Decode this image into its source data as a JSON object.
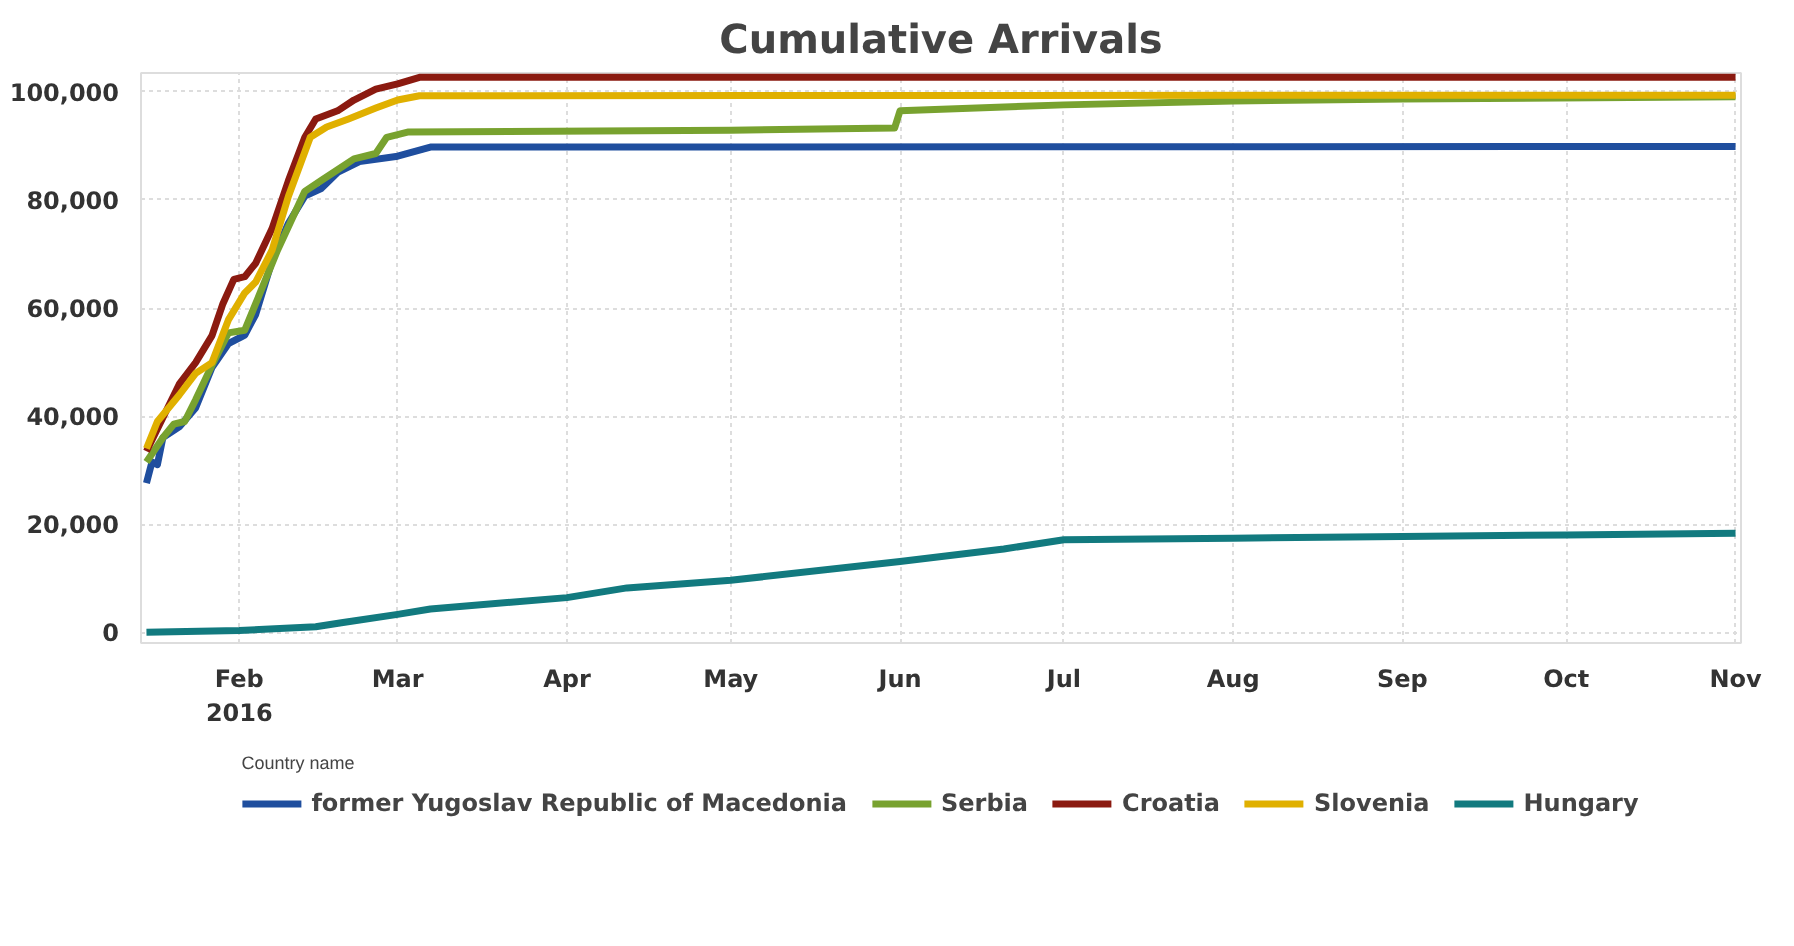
{
  "chart_data": {
    "type": "line",
    "title": "Cumulative Arrivals",
    "legend_title": "Country name",
    "legend": "bottom",
    "grid": true,
    "xlim": [
      "2016-01-14",
      "2016-11-02"
    ],
    "xticks": [
      {
        "value": "2016-02-01",
        "label": "Feb\n2016"
      },
      {
        "value": "2016-03-01",
        "label": "Mar"
      },
      {
        "value": "2016-04-01",
        "label": "Apr"
      },
      {
        "value": "2016-05-01",
        "label": "May"
      },
      {
        "value": "2016-06-01",
        "label": "Jun"
      },
      {
        "value": "2016-07-01",
        "label": "Jul"
      },
      {
        "value": "2016-08-01",
        "label": "Aug"
      },
      {
        "value": "2016-09-01",
        "label": "Sep"
      },
      {
        "value": "2016-10-01",
        "label": "Oct"
      },
      {
        "value": "2016-11-01",
        "label": "Nov"
      }
    ],
    "ylim": [
      -2000,
      103500
    ],
    "yticks": [
      {
        "value": 0,
        "label": "0"
      },
      {
        "value": 20000,
        "label": "20,000"
      },
      {
        "value": 40000,
        "label": "40,000"
      },
      {
        "value": 60000,
        "label": "60,000"
      },
      {
        "value": 80000,
        "label": "80,000"
      },
      {
        "value": 100000,
        "label": "100,000"
      }
    ],
    "series": [
      {
        "name": "former Yugoslav Republic of Macedonia",
        "color": "#1f4e9e",
        "x": [
          "2016-01-15",
          "2016-01-16",
          "2016-01-17",
          "2016-01-18",
          "2016-01-21",
          "2016-01-24",
          "2016-01-27",
          "2016-01-30",
          "2016-02-02",
          "2016-02-04",
          "2016-02-07",
          "2016-02-10",
          "2016-02-13",
          "2016-02-16",
          "2016-02-19",
          "2016-02-23",
          "2016-03-01",
          "2016-03-07",
          "2016-11-01"
        ],
        "values": [
          27600,
          31500,
          31000,
          36000,
          38000,
          41500,
          49000,
          53400,
          55000,
          58800,
          68700,
          75700,
          80700,
          82100,
          85100,
          87100,
          88100,
          89800,
          89900
        ]
      },
      {
        "name": "Serbia",
        "color": "#78a22f",
        "x": [
          "2016-01-15",
          "2016-01-18",
          "2016-01-20",
          "2016-01-22",
          "2016-01-24",
          "2016-01-27",
          "2016-01-30",
          "2016-02-02",
          "2016-02-04",
          "2016-02-08",
          "2016-02-13",
          "2016-02-16",
          "2016-02-19",
          "2016-02-22",
          "2016-02-26",
          "2016-02-28",
          "2016-03-03",
          "2016-05-01",
          "2016-05-31",
          "2016-06-01",
          "2016-07-01",
          "2016-08-01",
          "2016-09-01",
          "2016-11-01"
        ],
        "values": [
          31500,
          36000,
          38500,
          39000,
          43000,
          49400,
          55400,
          55900,
          60800,
          70700,
          81600,
          83600,
          85600,
          87600,
          88600,
          91600,
          92600,
          92900,
          93300,
          96500,
          97600,
          98300,
          98700,
          99100
        ]
      },
      {
        "name": "Croatia",
        "color": "#8b1a10",
        "x": [
          "2016-01-15",
          "2016-01-21",
          "2016-01-24",
          "2016-01-27",
          "2016-01-29",
          "2016-01-31",
          "2016-02-02",
          "2016-02-04",
          "2016-02-07",
          "2016-02-10",
          "2016-02-13",
          "2016-02-15",
          "2016-02-19",
          "2016-02-22",
          "2016-02-26",
          "2016-03-01",
          "2016-03-05",
          "2016-11-01"
        ],
        "values": [
          33500,
          45900,
          49900,
          54900,
          60800,
          65300,
          65800,
          68300,
          74700,
          83600,
          91600,
          95000,
          96500,
          98500,
          100500,
          101500,
          102700,
          102700
        ]
      },
      {
        "name": "Slovenia",
        "color": "#e0b000",
        "x": [
          "2016-01-15",
          "2016-01-17",
          "2016-01-21",
          "2016-01-24",
          "2016-01-27",
          "2016-01-30",
          "2016-02-02",
          "2016-02-04",
          "2016-02-07",
          "2016-02-10",
          "2016-02-14",
          "2016-02-17",
          "2016-02-21",
          "2016-02-26",
          "2016-03-01",
          "2016-03-05",
          "2016-11-01"
        ],
        "values": [
          34000,
          39000,
          43900,
          47900,
          49900,
          57800,
          62800,
          64800,
          70700,
          80700,
          91600,
          93500,
          95000,
          97000,
          98500,
          99300,
          99400
        ]
      },
      {
        "name": "Hungary",
        "color": "#127a7f",
        "x": [
          "2016-01-15",
          "2016-02-01",
          "2016-02-15",
          "2016-02-20",
          "2016-03-01",
          "2016-03-07",
          "2016-04-01",
          "2016-04-12",
          "2016-05-01",
          "2016-06-01",
          "2016-06-20",
          "2016-07-01",
          "2016-08-01",
          "2016-09-01",
          "2016-10-01",
          "2016-11-01"
        ],
        "values": [
          0,
          300,
          1000,
          1800,
          3300,
          4300,
          6400,
          8200,
          9600,
          13100,
          15400,
          17100,
          17400,
          17700,
          18000,
          18300
        ]
      }
    ]
  }
}
